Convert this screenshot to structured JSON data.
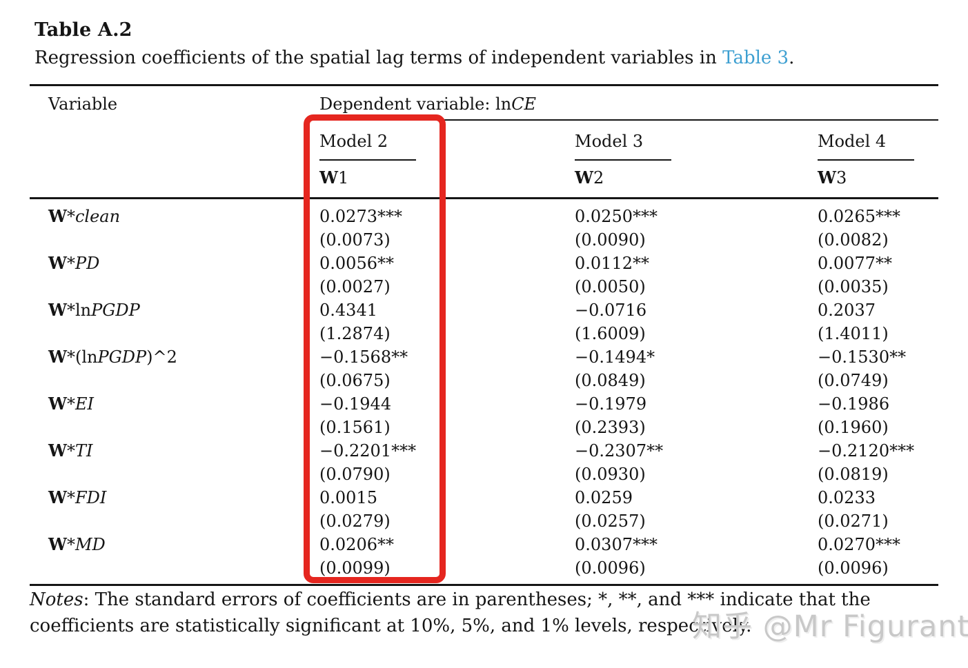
{
  "doc": {
    "title": "Table A.2",
    "caption_prefix": "Regression coefficients of the spatial lag terms of independent variables in ",
    "caption_link": "Table 3",
    "caption_suffix": "."
  },
  "colors": {
    "accent_red": "#e5261f",
    "link_blue": "#3d9fd1",
    "watermark_gray": "#c8c8c8"
  },
  "table": {
    "variable_header": "Variable",
    "dep_var_prefix": "Dependent variable: ln",
    "dep_var_em": "CE",
    "models": [
      {
        "label": "Model 2",
        "w_bold": "W",
        "w_num": "1"
      },
      {
        "label": "Model 3",
        "w_bold": "W",
        "w_num": "2"
      },
      {
        "label": "Model 4",
        "w_bold": "W",
        "w_num": "3"
      }
    ],
    "rows": [
      {
        "w": "W",
        "star": "*",
        "pre": "",
        "it": "clean",
        "post": "",
        "m2_coef": "0.0273***",
        "m2_se": "(0.0073)",
        "m3_coef": "0.0250***",
        "m3_se": "(0.0090)",
        "m4_coef": "0.0265***",
        "m4_se": "(0.0082)"
      },
      {
        "w": "W",
        "star": "*",
        "pre": "",
        "it": "PD",
        "post": "",
        "m2_coef": "0.0056**",
        "m2_se": "(0.0027)",
        "m3_coef": "0.0112**",
        "m3_se": "(0.0050)",
        "m4_coef": "0.0077**",
        "m4_se": "(0.0035)"
      },
      {
        "w": "W",
        "star": "*",
        "pre": "ln",
        "it": "PGDP",
        "post": "",
        "m2_coef": "0.4341",
        "m2_se": "(1.2874)",
        "m3_coef": "−0.0716",
        "m3_se": "(1.6009)",
        "m4_coef": "0.2037",
        "m4_se": "(1.4011)"
      },
      {
        "w": "W",
        "star": "*",
        "pre": "(ln",
        "it": "PGDP",
        "post": ")^2",
        "m2_coef": "−0.1568**",
        "m2_se": "(0.0675)",
        "m3_coef": "−0.1494*",
        "m3_se": "(0.0849)",
        "m4_coef": "−0.1530**",
        "m4_se": "(0.0749)"
      },
      {
        "w": "W",
        "star": "*",
        "pre": "",
        "it": "EI",
        "post": "",
        "m2_coef": "−0.1944",
        "m2_se": "(0.1561)",
        "m3_coef": "−0.1979",
        "m3_se": "(0.2393)",
        "m4_coef": "−0.1986",
        "m4_se": "(0.1960)"
      },
      {
        "w": "W",
        "star": "*",
        "pre": "",
        "it": "TI",
        "post": "",
        "m2_coef": "−0.2201***",
        "m2_se": "(0.0790)",
        "m3_coef": "−0.2307**",
        "m3_se": "(0.0930)",
        "m4_coef": "−0.2120***",
        "m4_se": "(0.0819)"
      },
      {
        "w": "W",
        "star": "*",
        "pre": "",
        "it": "FDI",
        "post": "",
        "m2_coef": "0.0015",
        "m2_se": "(0.0279)",
        "m3_coef": "0.0259",
        "m3_se": "(0.0257)",
        "m4_coef": "0.0233",
        "m4_se": "(0.0271)"
      },
      {
        "w": "W",
        "star": "*",
        "pre": "",
        "it": "MD",
        "post": "",
        "m2_coef": "0.0206**",
        "m2_se": "(0.0099)",
        "m3_coef": "0.0307***",
        "m3_se": "(0.0096)",
        "m4_coef": "0.0270***",
        "m4_se": "(0.0096)"
      }
    ]
  },
  "notes": {
    "label": "Notes",
    "text": ": The standard errors of coefficients are in parentheses; *, **, and *** indicate that the coefficients are statistically significant at 10%, 5%, and 1% levels, respectively."
  },
  "watermark": {
    "text": "知乎 @Mr Figurant"
  }
}
